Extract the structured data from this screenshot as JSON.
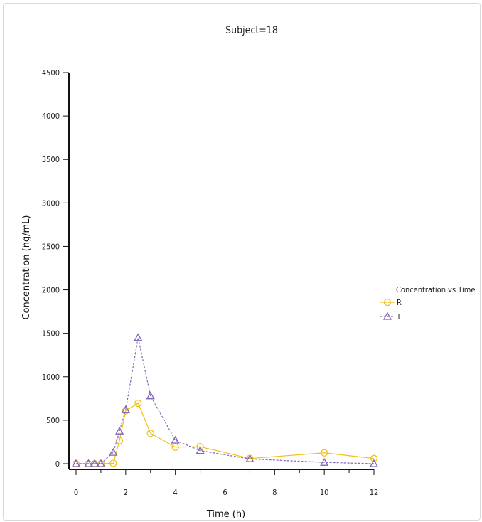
{
  "chart_data": {
    "type": "line",
    "title": "Subject=18",
    "xlabel": "Time (h)",
    "ylabel": "Concentration (ng/mL)",
    "xlim": [
      0,
      12
    ],
    "ylim": [
      0,
      4500
    ],
    "xticks": [
      0,
      2,
      4,
      6,
      8,
      10,
      12
    ],
    "yticks": [
      0,
      500,
      1000,
      1500,
      2000,
      2500,
      3000,
      3500,
      4000,
      4500
    ],
    "grid": false,
    "legend": {
      "title": "Concentration vs Time",
      "position": "right"
    },
    "series": [
      {
        "name": "R",
        "color": "#f2c019",
        "marker": "circle",
        "line": "solid",
        "x": [
          0,
          0.5,
          0.75,
          1,
          1.5,
          1.75,
          2,
          2.5,
          3,
          4,
          5,
          7,
          10,
          12
        ],
        "y": [
          0,
          0,
          0,
          0,
          5,
          265,
          610,
          695,
          350,
          190,
          195,
          60,
          125,
          60
        ]
      },
      {
        "name": "T",
        "color": "#7e66b6",
        "marker": "triangle",
        "line": "dashed",
        "x": [
          0,
          0.5,
          0.75,
          1,
          1.5,
          1.75,
          2,
          2.5,
          3,
          4,
          5,
          7,
          10,
          12
        ],
        "y": [
          0,
          0,
          0,
          0,
          130,
          375,
          620,
          1450,
          780,
          270,
          150,
          55,
          15,
          0
        ]
      }
    ]
  }
}
